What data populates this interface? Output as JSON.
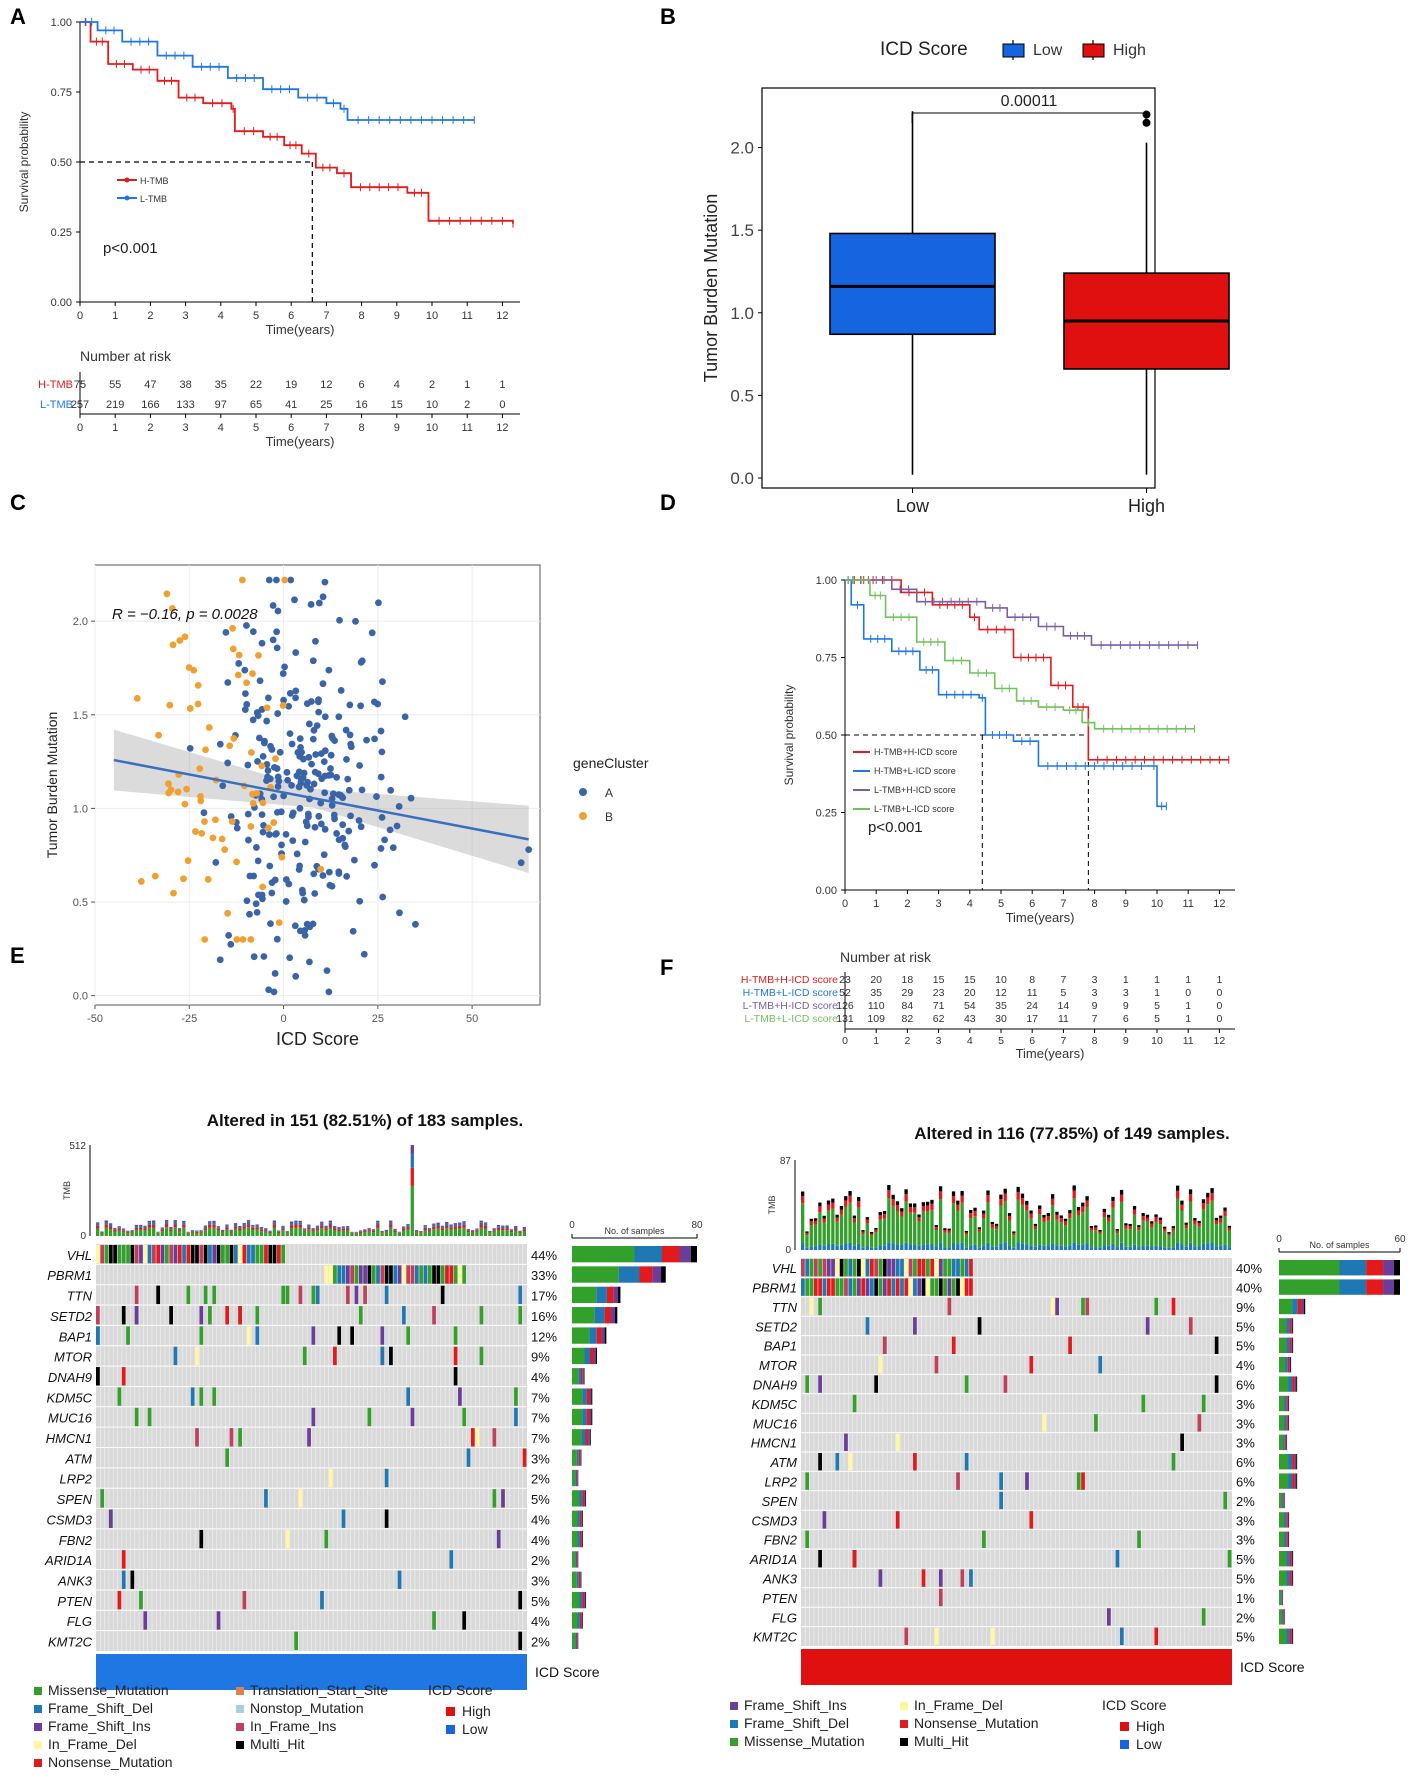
{
  "colors": {
    "red": "#e41a1c",
    "blue": "#1f77e4",
    "purple": "#7b5ea7",
    "green": "#70c25d",
    "box_low": "#1565e0",
    "box_high": "#e01010",
    "scatterA": "#3a64a8",
    "scatterB": "#f0a030",
    "missense": "#33a02c",
    "frame_del": "#1f78b4",
    "frame_ins": "#6a3d9a",
    "in_del": "#fff8a0",
    "nonsense": "#e31a1c",
    "translation": "#e08050",
    "nonstop": "#a6cee3",
    "in_ins": "#c0405a",
    "multi": "#000000",
    "gray": "#d9d9d9"
  },
  "chart_data": [
    {
      "panel": "A",
      "type": "line",
      "xlabel": "Time(years)",
      "ylabel": "Survival probability",
      "xlim": [
        0,
        12.5
      ],
      "ylim": [
        0,
        1
      ],
      "x_ticks": [
        0,
        1,
        2,
        3,
        4,
        5,
        6,
        7,
        8,
        9,
        10,
        11,
        12
      ],
      "y_ticks": [
        "0.00",
        "0.25",
        "0.50",
        "0.75",
        "1.00"
      ],
      "pvalue": "p<0.001",
      "median_time": 6.6,
      "series": [
        {
          "name": "H-TMB",
          "color_key": "red",
          "points": [
            [
              0,
              1
            ],
            [
              0.3,
              0.93
            ],
            [
              0.8,
              0.85
            ],
            [
              1.5,
              0.83
            ],
            [
              2.2,
              0.79
            ],
            [
              2.8,
              0.73
            ],
            [
              3.5,
              0.71
            ],
            [
              4.3,
              0.69
            ],
            [
              4.4,
              0.61
            ],
            [
              5.2,
              0.59
            ],
            [
              5.8,
              0.56
            ],
            [
              6.3,
              0.53
            ],
            [
              6.7,
              0.48
            ],
            [
              7.3,
              0.46
            ],
            [
              7.7,
              0.41
            ],
            [
              9.3,
              0.39
            ],
            [
              9.9,
              0.29
            ],
            [
              12.3,
              0.28
            ]
          ]
        },
        {
          "name": "L-TMB",
          "color_key": "blue",
          "points": [
            [
              0,
              1
            ],
            [
              0.5,
              0.97
            ],
            [
              1.2,
              0.93
            ],
            [
              2.2,
              0.88
            ],
            [
              3.2,
              0.84
            ],
            [
              4.2,
              0.8
            ],
            [
              5.2,
              0.76
            ],
            [
              6.2,
              0.73
            ],
            [
              7,
              0.71
            ],
            [
              7.4,
              0.69
            ],
            [
              7.6,
              0.65
            ],
            [
              11.2,
              0.65
            ]
          ]
        }
      ],
      "risk_table": {
        "title": "Number at risk",
        "rows": [
          {
            "label": "H-TMB",
            "color_key": "red",
            "values": [
              "75",
              "55",
              "47",
              "38",
              "35",
              "22",
              "19",
              "12",
              "6",
              "4",
              "2",
              "1",
              "1"
            ]
          },
          {
            "label": "L-TMB",
            "color_key": "blue",
            "values": [
              "257",
              "219",
              "166",
              "133",
              "97",
              "65",
              "41",
              "25",
              "16",
              "15",
              "10",
              "2",
              "0"
            ]
          }
        ],
        "xlabel": "Time(years)"
      }
    },
    {
      "panel": "B",
      "type": "box",
      "legend_title": "ICD Score",
      "legend": [
        "Low",
        "High"
      ],
      "xlabel": "",
      "ylabel": "Tumor Burden Mutation",
      "ylim": [
        0,
        2.3
      ],
      "y_ticks": [
        "0.0",
        "0.5",
        "1.0",
        "1.5",
        "2.0"
      ],
      "categories": [
        "Low",
        "High"
      ],
      "boxes": [
        {
          "name": "Low",
          "min": 0.02,
          "q1": 0.87,
          "median": 1.16,
          "q3": 1.48,
          "max": 2.22,
          "outliers": []
        },
        {
          "name": "High",
          "min": 0.02,
          "q1": 0.66,
          "median": 0.95,
          "q3": 1.24,
          "max": 2.03,
          "outliers": [
            2.15,
            2.2
          ]
        }
      ],
      "bracket_label": "0.00011"
    },
    {
      "panel": "C",
      "type": "scatter",
      "xlabel": "ICD Score",
      "ylabel": "Tumor Burden Mutation",
      "xlim": [
        -50,
        68
      ],
      "ylim": [
        -0.05,
        2.3
      ],
      "x_ticks": [
        -50,
        -25,
        0,
        25,
        50
      ],
      "y_ticks": [
        "0.0",
        "0.5",
        "1.0",
        "1.5",
        "2.0"
      ],
      "annotation": "R = −0.16, p = 0.0028",
      "legend_title": "geneCluster",
      "legend": [
        "A",
        "B"
      ],
      "fit": {
        "slope": -0.00385,
        "intercept": 1.085
      }
    },
    {
      "panel": "D",
      "type": "line",
      "xlabel": "Time(years)",
      "ylabel": "Survival probability",
      "xlim": [
        0,
        12.5
      ],
      "ylim": [
        0,
        1
      ],
      "x_ticks": [
        0,
        1,
        2,
        3,
        4,
        5,
        6,
        7,
        8,
        9,
        10,
        11,
        12
      ],
      "y_ticks": [
        "0.00",
        "0.25",
        "0.50",
        "0.75",
        "1.00"
      ],
      "pvalue": "p<0.001",
      "median_times": [
        4.4,
        7.8
      ],
      "series": [
        {
          "name": "H-TMB+H-ICD score",
          "color_key": "red",
          "points": [
            [
              0,
              1
            ],
            [
              1.8,
              0.96
            ],
            [
              2.8,
              0.92
            ],
            [
              4,
              0.88
            ],
            [
              4.3,
              0.84
            ],
            [
              5.4,
              0.75
            ],
            [
              6.6,
              0.66
            ],
            [
              7.3,
              0.59
            ],
            [
              7.8,
              0.42
            ],
            [
              12.3,
              0.42
            ]
          ]
        },
        {
          "name": "H-TMB+L-ICD score",
          "color_key": "blue",
          "points": [
            [
              0,
              1
            ],
            [
              0.2,
              0.92
            ],
            [
              0.6,
              0.81
            ],
            [
              1.5,
              0.77
            ],
            [
              2.4,
              0.71
            ],
            [
              3,
              0.63
            ],
            [
              4.3,
              0.62
            ],
            [
              4.5,
              0.5
            ],
            [
              5.4,
              0.48
            ],
            [
              6.2,
              0.4
            ],
            [
              9.8,
              0.4
            ],
            [
              10,
              0.27
            ],
            [
              10.3,
              0.27
            ]
          ]
        },
        {
          "name": "L-TMB+H-ICD score",
          "color_key": "purple",
          "points": [
            [
              0,
              1
            ],
            [
              1.5,
              0.97
            ],
            [
              2.3,
              0.93
            ],
            [
              4.5,
              0.91
            ],
            [
              5.2,
              0.88
            ],
            [
              6.2,
              0.85
            ],
            [
              7,
              0.82
            ],
            [
              7.9,
              0.79
            ],
            [
              11.3,
              0.79
            ]
          ]
        },
        {
          "name": "L-TMB+L-ICD score",
          "color_key": "green",
          "points": [
            [
              0,
              1
            ],
            [
              0.8,
              0.95
            ],
            [
              1.3,
              0.88
            ],
            [
              2.3,
              0.8
            ],
            [
              3.2,
              0.74
            ],
            [
              4,
              0.7
            ],
            [
              4.8,
              0.65
            ],
            [
              5.5,
              0.61
            ],
            [
              6.2,
              0.59
            ],
            [
              7,
              0.58
            ],
            [
              7.6,
              0.54
            ],
            [
              8,
              0.52
            ],
            [
              11.2,
              0.52
            ]
          ]
        }
      ],
      "risk_table": {
        "title": "Number at risk",
        "rows": [
          {
            "label": "H-TMB+H-ICD score",
            "color_key": "red",
            "values": [
              "23",
              "20",
              "18",
              "15",
              "15",
              "10",
              "8",
              "7",
              "3",
              "1",
              "1",
              "1",
              "1"
            ]
          },
          {
            "label": "H-TMB+L-ICD score",
            "color_key": "blue",
            "values": [
              "52",
              "35",
              "29",
              "23",
              "20",
              "12",
              "11",
              "5",
              "3",
              "3",
              "1",
              "0",
              "0"
            ]
          },
          {
            "label": "L-TMB+H-ICD score",
            "color_key": "purple",
            "values": [
              "126",
              "110",
              "84",
              "71",
              "54",
              "35",
              "24",
              "14",
              "9",
              "9",
              "5",
              "1",
              "0"
            ]
          },
          {
            "label": "L-TMB+L-ICD score",
            "color_key": "green",
            "values": [
              "131",
              "109",
              "82",
              "62",
              "43",
              "30",
              "17",
              "11",
              "7",
              "6",
              "5",
              "1",
              "0"
            ]
          }
        ],
        "xlabel": "Time(years)"
      }
    },
    {
      "panel": "E",
      "type": "heatmap",
      "title": "Altered in 151 (82.51%) of 183 samples.",
      "tmb_label": "TMB",
      "tmb_max": "512",
      "tmb_min": "0",
      "bar_axis": {
        "min": "0",
        "max": "80",
        "label": "No. of samples"
      },
      "n_cols": 100,
      "annotation_label": "ICD Score",
      "annotation_color_key": "blue",
      "genes": [
        {
          "name": "VHL",
          "pct": "44%",
          "count": 80
        },
        {
          "name": "PBRM1",
          "pct": "33%",
          "count": 60
        },
        {
          "name": "TTN",
          "pct": "17%",
          "count": 31
        },
        {
          "name": "SETD2",
          "pct": "16%",
          "count": 29
        },
        {
          "name": "BAP1",
          "pct": "12%",
          "count": 22
        },
        {
          "name": "MTOR",
          "pct": "9%",
          "count": 16
        },
        {
          "name": "DNAH9",
          "pct": "4%",
          "count": 8
        },
        {
          "name": "KDM5C",
          "pct": "7%",
          "count": 13
        },
        {
          "name": "MUC16",
          "pct": "7%",
          "count": 13
        },
        {
          "name": "HMCN1",
          "pct": "7%",
          "count": 12
        },
        {
          "name": "ATM",
          "pct": "3%",
          "count": 6
        },
        {
          "name": "LRP2",
          "pct": "2%",
          "count": 4
        },
        {
          "name": "SPEN",
          "pct": "5%",
          "count": 9
        },
        {
          "name": "CSMD3",
          "pct": "4%",
          "count": 7
        },
        {
          "name": "FBN2",
          "pct": "4%",
          "count": 7
        },
        {
          "name": "ARID1A",
          "pct": "2%",
          "count": 4
        },
        {
          "name": "ANK3",
          "pct": "3%",
          "count": 6
        },
        {
          "name": "PTEN",
          "pct": "5%",
          "count": 9
        },
        {
          "name": "FLG",
          "pct": "4%",
          "count": 7
        },
        {
          "name": "KMT2C",
          "pct": "2%",
          "count": 4
        }
      ],
      "legend": [
        {
          "label": "Missense_Mutation",
          "color_key": "missense"
        },
        {
          "label": "Frame_Shift_Del",
          "color_key": "frame_del"
        },
        {
          "label": "Frame_Shift_Ins",
          "color_key": "frame_ins"
        },
        {
          "label": "In_Frame_Del",
          "color_key": "in_del"
        },
        {
          "label": "Nonsense_Mutation",
          "color_key": "nonsense"
        },
        {
          "label": "Translation_Start_Site",
          "color_key": "translation"
        },
        {
          "label": "Nonstop_Mutation",
          "color_key": "nonstop"
        },
        {
          "label": "In_Frame_Ins",
          "color_key": "in_ins"
        },
        {
          "label": "Multi_Hit",
          "color_key": "multi"
        }
      ],
      "icd_legend": {
        "title": "ICD Score",
        "items": [
          {
            "label": "High",
            "color_key": "box_high"
          },
          {
            "label": "Low",
            "color_key": "box_low"
          }
        ]
      }
    },
    {
      "panel": "F",
      "type": "heatmap",
      "title": "Altered in 116 (77.85%) of 149 samples.",
      "tmb_label": "TMB",
      "tmb_max": "87",
      "tmb_min": "0",
      "bar_axis": {
        "min": "0",
        "max": "60",
        "label": "No. of samples"
      },
      "n_cols": 100,
      "annotation_label": "ICD Score",
      "annotation_color_key": "box_high",
      "genes": [
        {
          "name": "VHL",
          "pct": "40%",
          "count": 60
        },
        {
          "name": "PBRM1",
          "pct": "40%",
          "count": 60
        },
        {
          "name": "TTN",
          "pct": "9%",
          "count": 13
        },
        {
          "name": "SETD2",
          "pct": "5%",
          "count": 7
        },
        {
          "name": "BAP1",
          "pct": "5%",
          "count": 7
        },
        {
          "name": "MTOR",
          "pct": "4%",
          "count": 6
        },
        {
          "name": "DNAH9",
          "pct": "6%",
          "count": 9
        },
        {
          "name": "KDM5C",
          "pct": "3%",
          "count": 5
        },
        {
          "name": "MUC16",
          "pct": "3%",
          "count": 5
        },
        {
          "name": "HMCN1",
          "pct": "3%",
          "count": 4
        },
        {
          "name": "ATM",
          "pct": "6%",
          "count": 9
        },
        {
          "name": "LRP2",
          "pct": "6%",
          "count": 9
        },
        {
          "name": "SPEN",
          "pct": "2%",
          "count": 3
        },
        {
          "name": "CSMD3",
          "pct": "3%",
          "count": 5
        },
        {
          "name": "FBN2",
          "pct": "3%",
          "count": 5
        },
        {
          "name": "ARID1A",
          "pct": "5%",
          "count": 7
        },
        {
          "name": "ANK3",
          "pct": "5%",
          "count": 7
        },
        {
          "name": "PTEN",
          "pct": "1%",
          "count": 2
        },
        {
          "name": "FLG",
          "pct": "2%",
          "count": 3
        },
        {
          "name": "KMT2C",
          "pct": "5%",
          "count": 7
        }
      ],
      "legend": [
        {
          "label": "Frame_Shift_Ins",
          "color_key": "frame_ins"
        },
        {
          "label": "Frame_Shift_Del",
          "color_key": "frame_del"
        },
        {
          "label": "Missense_Mutation",
          "color_key": "missense"
        },
        {
          "label": "In_Frame_Del",
          "color_key": "in_del"
        },
        {
          "label": "Nonsense_Mutation",
          "color_key": "nonsense"
        },
        {
          "label": "Multi_Hit",
          "color_key": "multi"
        }
      ],
      "icd_legend": {
        "title": "ICD Score",
        "items": [
          {
            "label": "High",
            "color_key": "box_high"
          },
          {
            "label": "Low",
            "color_key": "box_low"
          }
        ]
      }
    }
  ],
  "panel_labels": [
    "A",
    "B",
    "C",
    "D",
    "E",
    "F"
  ]
}
